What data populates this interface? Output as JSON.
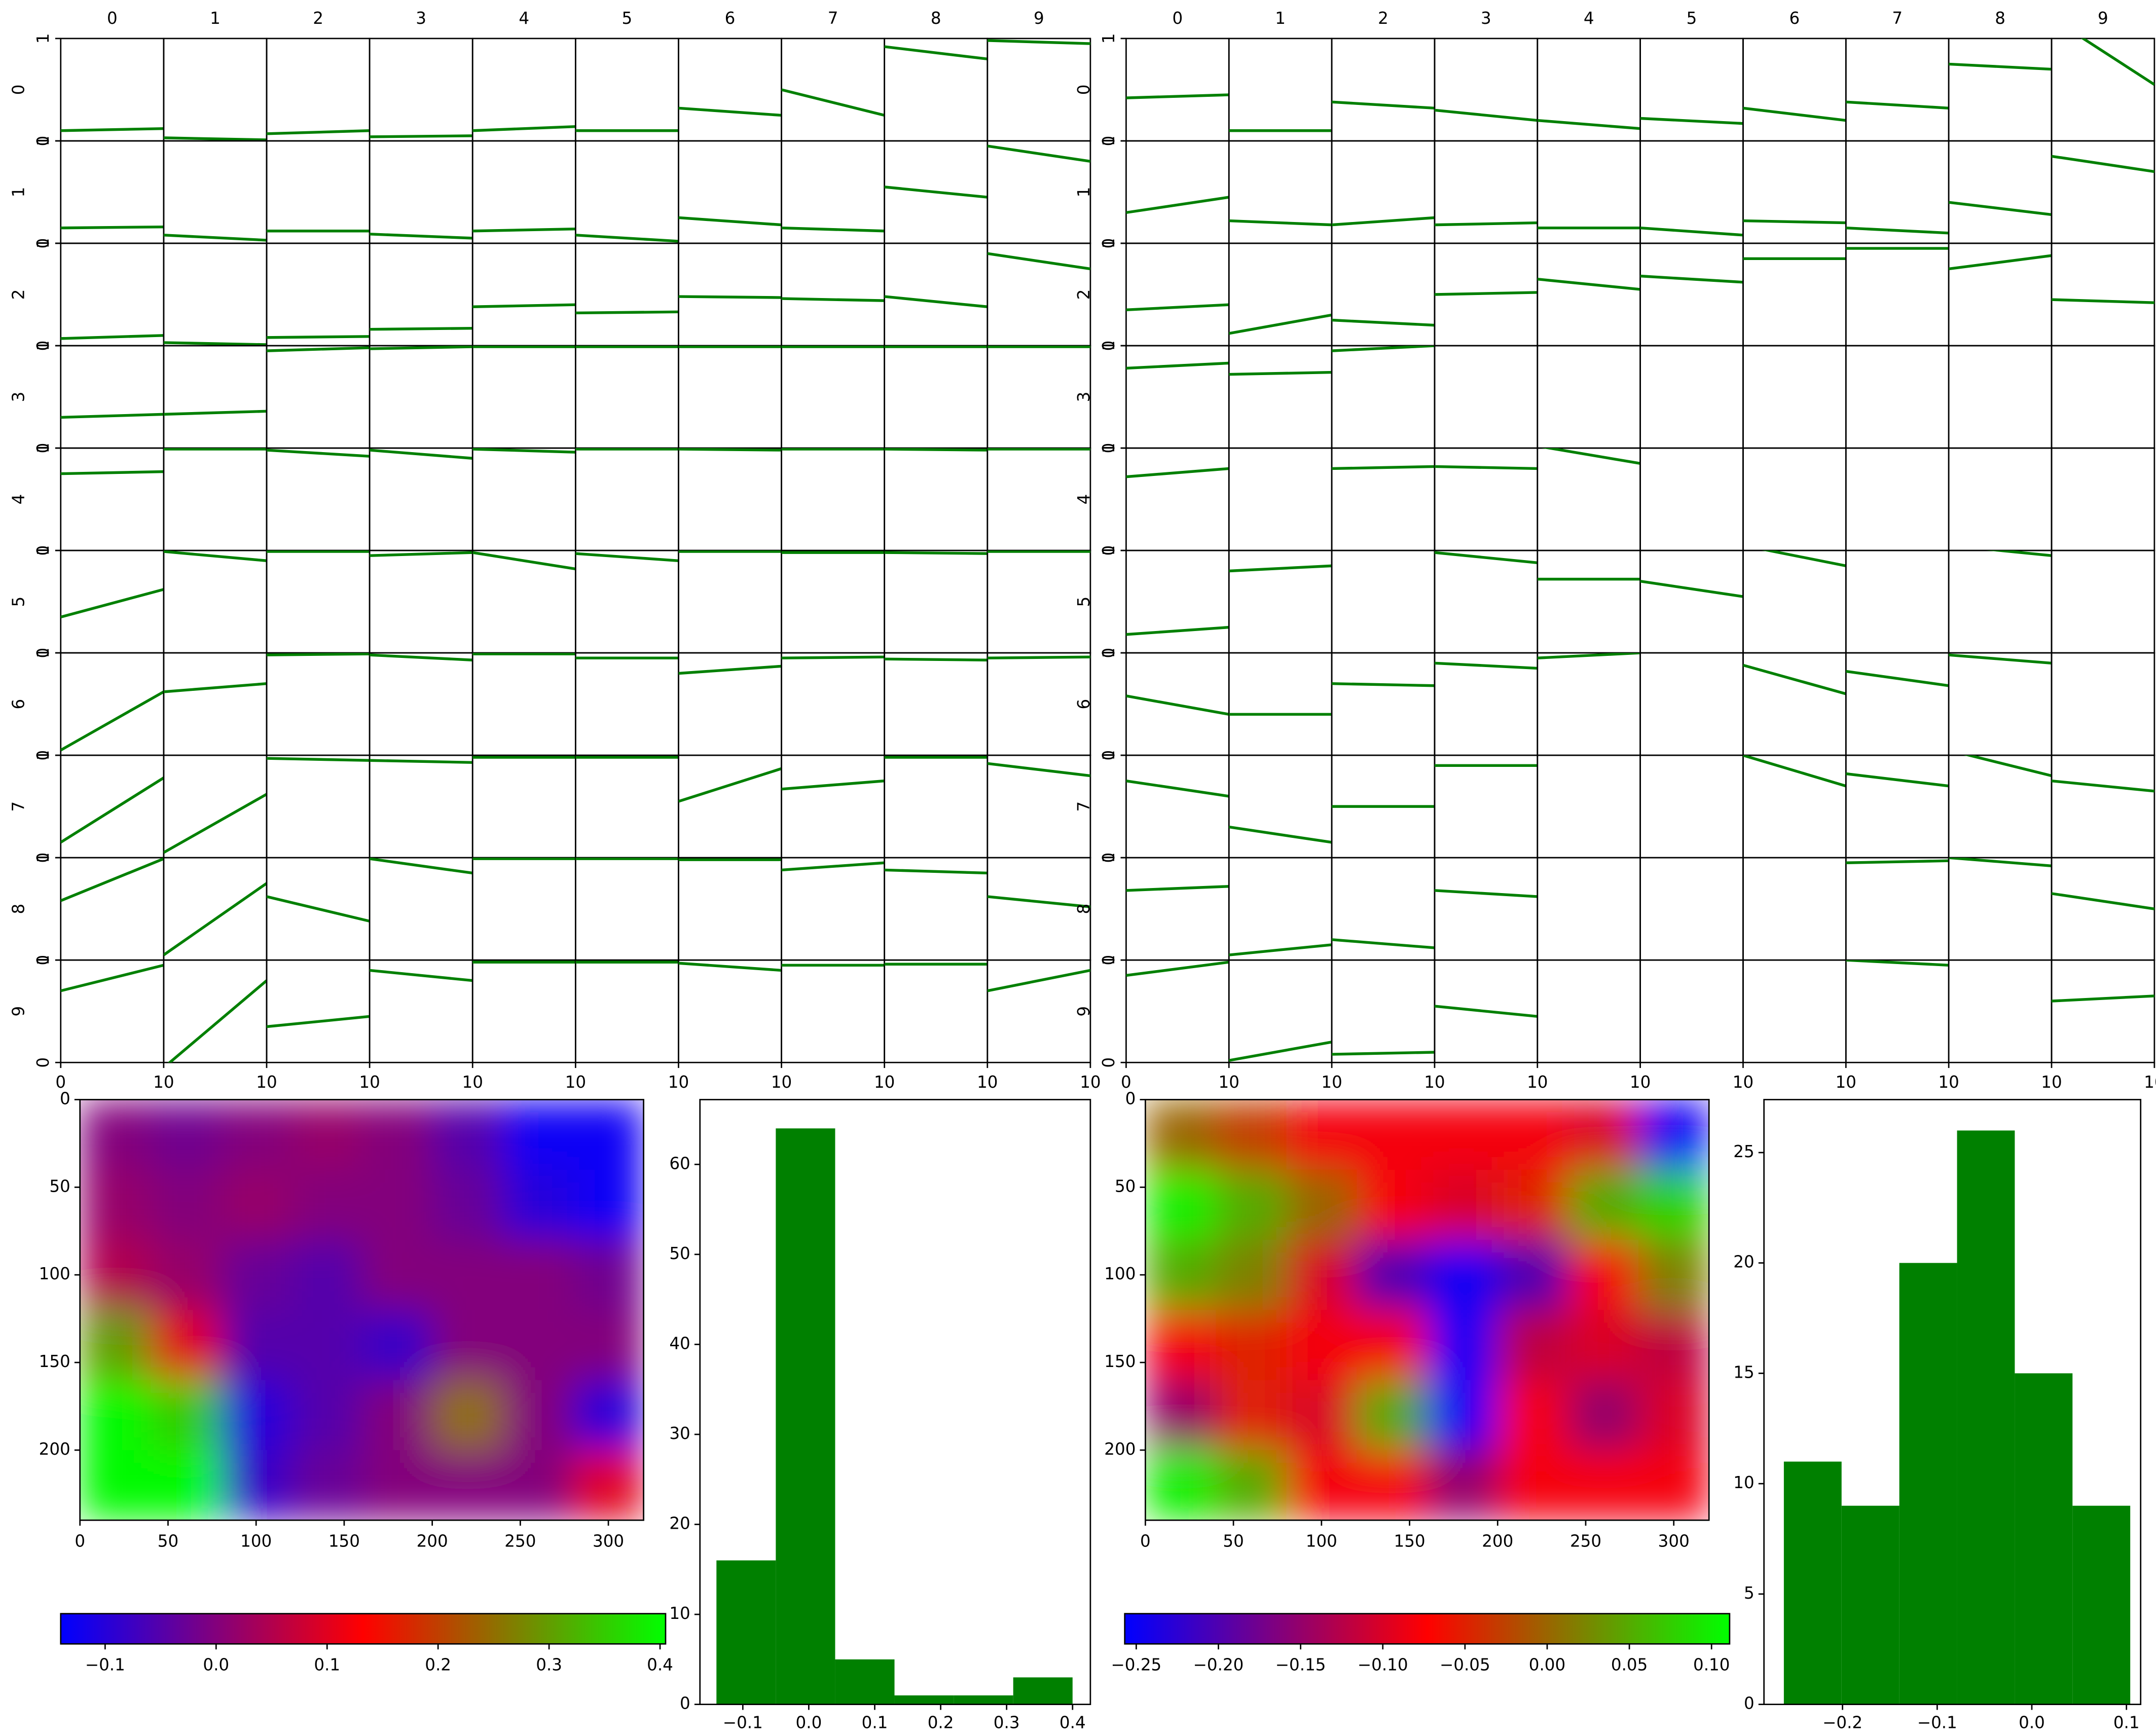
{
  "chart_data": [
    {
      "type": "grid",
      "columns": [
        "0",
        "1",
        "2",
        "3",
        "4",
        "5",
        "6",
        "7",
        "8",
        "9"
      ],
      "rows": [
        "0",
        "1",
        "2",
        "3",
        "4",
        "5",
        "6",
        "7",
        "8",
        "9"
      ],
      "xlim": [
        0,
        10
      ],
      "ylim": [
        0,
        1
      ],
      "xticks": [
        0,
        10
      ],
      "yticks": [
        0,
        1
      ],
      "color": "#008000",
      "lines": [
        [
          [
            0.1,
            0.12
          ],
          [
            0.03,
            0.01
          ],
          [
            0.07,
            0.1
          ],
          [
            0.04,
            0.05
          ],
          [
            0.1,
            0.14
          ],
          [
            0.1,
            0.1
          ],
          [
            0.32,
            0.25
          ],
          [
            0.5,
            0.25
          ],
          [
            0.92,
            0.8
          ],
          [
            0.98,
            0.95
          ]
        ],
        [
          [
            0.15,
            0.16
          ],
          [
            0.08,
            0.03
          ],
          [
            0.12,
            0.12
          ],
          [
            0.09,
            0.05
          ],
          [
            0.12,
            0.14
          ],
          [
            0.08,
            0.02
          ],
          [
            0.25,
            0.18
          ],
          [
            0.15,
            0.12
          ],
          [
            0.55,
            0.45
          ],
          [
            0.95,
            0.8
          ]
        ],
        [
          [
            0.07,
            0.1
          ],
          [
            0.03,
            0.01
          ],
          [
            0.08,
            0.09
          ],
          [
            0.16,
            0.17
          ],
          [
            0.38,
            0.4
          ],
          [
            0.32,
            0.33
          ],
          [
            0.48,
            0.47
          ],
          [
            0.46,
            0.44
          ],
          [
            0.48,
            0.38
          ],
          [
            0.9,
            0.75
          ]
        ],
        [
          [
            0.3,
            0.33
          ],
          [
            0.33,
            0.36
          ],
          [
            0.95,
            0.98
          ],
          [
            0.97,
            0.99
          ],
          [
            0.99,
            0.99
          ],
          [
            0.99,
            0.99
          ],
          [
            0.99,
            0.99
          ],
          [
            0.99,
            0.99
          ],
          [
            0.99,
            0.99
          ],
          [
            0.99,
            0.99
          ]
        ],
        [
          [
            0.75,
            0.77
          ],
          [
            0.99,
            0.99
          ],
          [
            0.98,
            0.92
          ],
          [
            0.98,
            0.9
          ],
          [
            0.99,
            0.96
          ],
          [
            0.99,
            0.99
          ],
          [
            0.99,
            0.98
          ],
          [
            0.99,
            0.99
          ],
          [
            0.99,
            0.98
          ],
          [
            0.99,
            0.99
          ]
        ],
        [
          [
            0.35,
            0.62
          ],
          [
            0.99,
            0.9
          ],
          [
            0.99,
            0.99
          ],
          [
            0.95,
            0.98
          ],
          [
            0.98,
            0.82
          ],
          [
            0.97,
            0.9
          ],
          [
            0.99,
            0.99
          ],
          [
            0.98,
            0.98
          ],
          [
            0.98,
            0.97
          ],
          [
            0.99,
            0.99
          ]
        ],
        [
          [
            0.05,
            0.62
          ],
          [
            0.62,
            0.7
          ],
          [
            0.98,
            0.99
          ],
          [
            0.98,
            0.93
          ],
          [
            0.99,
            0.99
          ],
          [
            0.95,
            0.95
          ],
          [
            0.8,
            0.87
          ],
          [
            0.95,
            0.96
          ],
          [
            0.94,
            0.93
          ],
          [
            0.95,
            0.96
          ]
        ],
        [
          [
            0.15,
            0.78
          ],
          [
            0.05,
            0.62
          ],
          [
            0.97,
            0.95
          ],
          [
            0.95,
            0.93
          ],
          [
            0.98,
            0.98
          ],
          [
            0.98,
            0.98
          ],
          [
            0.55,
            0.87
          ],
          [
            0.67,
            0.75
          ],
          [
            0.98,
            0.98
          ],
          [
            0.92,
            0.8
          ]
        ],
        [
          [
            0.58,
            0.99
          ],
          [
            0.05,
            0.75
          ],
          [
            0.62,
            0.38
          ],
          [
            0.99,
            0.85
          ],
          [
            0.99,
            0.99
          ],
          [
            0.99,
            0.99
          ],
          [
            0.98,
            0.98
          ],
          [
            0.88,
            0.95
          ],
          [
            0.88,
            0.85
          ],
          [
            0.62,
            0.52
          ]
        ],
        [
          [
            0.7,
            0.95
          ],
          [
            -0.05,
            0.8
          ],
          [
            0.35,
            0.45
          ],
          [
            0.9,
            0.8
          ],
          [
            0.98,
            0.98
          ],
          [
            0.98,
            0.98
          ],
          [
            0.97,
            0.9
          ],
          [
            0.95,
            0.95
          ],
          [
            0.96,
            0.96
          ],
          [
            0.7,
            0.9
          ]
        ]
      ]
    },
    {
      "type": "grid",
      "columns": [
        "0",
        "1",
        "2",
        "3",
        "4",
        "5",
        "6",
        "7",
        "8",
        "9"
      ],
      "rows": [
        "0",
        "1",
        "2",
        "3",
        "4",
        "5",
        "6",
        "7",
        "8",
        "9"
      ],
      "xlim": [
        0,
        10
      ],
      "ylim": [
        0,
        1
      ],
      "xticks": [
        0,
        10
      ],
      "yticks": [
        0,
        1
      ],
      "color": "#008000",
      "lines": [
        [
          [
            0.42,
            0.45
          ],
          [
            0.1,
            0.1
          ],
          [
            0.38,
            0.32
          ],
          [
            0.3,
            0.2
          ],
          [
            0.2,
            0.12
          ],
          [
            0.22,
            0.17
          ],
          [
            0.32,
            0.2
          ],
          [
            0.38,
            0.32
          ],
          [
            0.75,
            0.7
          ],
          [
            1.2,
            0.55
          ]
        ],
        [
          [
            0.3,
            0.45
          ],
          [
            0.22,
            0.18
          ],
          [
            0.18,
            0.25
          ],
          [
            0.18,
            0.2
          ],
          [
            0.15,
            0.15
          ],
          [
            0.15,
            0.08
          ],
          [
            0.22,
            0.2
          ],
          [
            0.15,
            0.1
          ],
          [
            0.4,
            0.28
          ],
          [
            0.85,
            0.7
          ]
        ],
        [
          [
            0.35,
            0.4
          ],
          [
            0.12,
            0.3
          ],
          [
            0.25,
            0.2
          ],
          [
            0.5,
            0.52
          ],
          [
            0.65,
            0.55
          ],
          [
            0.68,
            0.62
          ],
          [
            0.85,
            0.85
          ],
          [
            0.95,
            0.95
          ],
          [
            0.75,
            0.88
          ],
          [
            0.45,
            0.42
          ]
        ],
        [
          [
            0.78,
            0.83
          ],
          [
            0.72,
            0.74
          ],
          [
            0.95,
            1.0
          ],
          null,
          null,
          null,
          null,
          null,
          null,
          null
        ],
        [
          [
            0.72,
            0.8
          ],
          null,
          [
            0.8,
            0.82
          ],
          [
            0.82,
            0.8
          ],
          [
            1.02,
            0.85
          ],
          null,
          null,
          null,
          null,
          null
        ],
        [
          [
            0.18,
            0.25
          ],
          [
            0.8,
            0.85
          ],
          null,
          [
            0.98,
            0.88
          ],
          [
            0.72,
            0.72
          ],
          [
            0.7,
            0.55
          ],
          [
            1.05,
            0.85
          ],
          null,
          [
            1.05,
            0.95
          ],
          null
        ],
        [
          [
            0.58,
            0.4
          ],
          [
            0.4,
            0.4
          ],
          [
            0.7,
            0.68
          ],
          [
            0.9,
            0.85
          ],
          [
            0.95,
            1.0
          ],
          null,
          [
            0.88,
            0.6
          ],
          [
            0.82,
            0.68
          ],
          [
            0.98,
            0.9
          ],
          null
        ],
        [
          [
            0.75,
            0.6
          ],
          [
            0.3,
            0.15
          ],
          [
            0.5,
            0.5
          ],
          [
            0.9,
            0.9
          ],
          null,
          null,
          [
            1.0,
            0.7
          ],
          [
            0.82,
            0.7
          ],
          [
            1.05,
            0.8
          ],
          [
            0.75,
            0.65
          ]
        ],
        [
          [
            0.68,
            0.72
          ],
          [
            0.05,
            0.15
          ],
          [
            0.2,
            0.12
          ],
          [
            0.68,
            0.62
          ],
          null,
          null,
          null,
          [
            0.95,
            0.97
          ],
          [
            1.0,
            0.92
          ],
          [
            0.65,
            0.5
          ]
        ],
        [
          [
            0.85,
            0.98
          ],
          [
            0.02,
            0.2
          ],
          [
            0.08,
            0.1
          ],
          [
            0.55,
            0.45
          ],
          null,
          null,
          null,
          [
            1.0,
            0.95
          ],
          null,
          [
            0.6,
            0.65
          ]
        ]
      ]
    },
    {
      "type": "heatmap",
      "xlim": [
        0,
        320
      ],
      "ylim": [
        240,
        0
      ],
      "xticks": [
        0,
        50,
        100,
        150,
        200,
        250,
        300
      ],
      "yticks": [
        0,
        50,
        100,
        150,
        200
      ],
      "cmap": [
        "#0000ff",
        "#ff0000",
        "#00ff00"
      ],
      "clim": [
        -0.14,
        0.405
      ],
      "cticks": [
        {
          "value": -0.1,
          "label": "−0.1"
        },
        {
          "value": 0,
          "label": "0.0"
        },
        0.1,
        0.2,
        0.3,
        0.4
      ],
      "values": [
        [
          0.0,
          -0.02,
          0.0,
          0.02,
          0.0,
          -0.05,
          -0.13,
          -0.13
        ],
        [
          0.02,
          0.0,
          0.02,
          0.0,
          0.0,
          -0.03,
          -0.1,
          -0.13
        ],
        [
          0.05,
          0.02,
          -0.03,
          -0.05,
          0.0,
          0.0,
          0.0,
          -0.02
        ],
        [
          0.3,
          0.1,
          -0.05,
          -0.05,
          -0.08,
          0.0,
          0.0,
          0.0
        ],
        [
          0.4,
          0.35,
          -0.1,
          -0.05,
          0.0,
          0.25,
          0.0,
          -0.1
        ],
        [
          0.4,
          0.4,
          -0.08,
          -0.03,
          0.0,
          0.0,
          0.0,
          0.1
        ]
      ]
    },
    {
      "type": "histogram",
      "bins": [
        -0.14,
        -0.05,
        0.04,
        0.13,
        0.22,
        0.31,
        0.4
      ],
      "counts": [
        16,
        64,
        5,
        1,
        1,
        3
      ],
      "color": "#008000",
      "xlim": [
        -0.165,
        0.427
      ],
      "ylim": [
        0,
        67.2
      ],
      "yticks": [
        0,
        10,
        20,
        30,
        40,
        50,
        60
      ],
      "xticks": [
        {
          "value": -0.1,
          "label": "−0.1"
        },
        {
          "value": 0,
          "label": "0.0"
        },
        0.1,
        0.2,
        0.3,
        0.4
      ]
    },
    {
      "type": "heatmap",
      "xlim": [
        0,
        320
      ],
      "ylim": [
        240,
        0
      ],
      "xticks": [
        0,
        50,
        100,
        150,
        200,
        250,
        300
      ],
      "yticks": [
        0,
        50,
        100,
        150,
        200
      ],
      "cmap": [
        "#0000ff",
        "#ff0000",
        "#00ff00"
      ],
      "clim": [
        -0.257,
        0.111
      ],
      "cticks": [
        {
          "value": -0.25,
          "label": "−0.25"
        },
        {
          "value": -0.2,
          "label": "−0.20"
        },
        {
          "value": -0.15,
          "label": "−0.15"
        },
        {
          "value": -0.1,
          "label": "−0.10"
        },
        {
          "value": -0.05,
          "label": "−0.05"
        },
        {
          "value": 0,
          "label": "0.00"
        },
        {
          "value": 0.05,
          "label": "0.05"
        },
        {
          "value": 0.1,
          "label": "0.10"
        }
      ],
      "values": [
        [
          0.0,
          -0.03,
          -0.08,
          -0.08,
          -0.08,
          -0.08,
          -0.1,
          -0.25
        ],
        [
          0.1,
          0.05,
          0.0,
          -0.08,
          -0.1,
          -0.05,
          0.05,
          0.08
        ],
        [
          0.05,
          0.02,
          -0.1,
          -0.2,
          -0.25,
          -0.2,
          -0.08,
          0.02
        ],
        [
          -0.08,
          -0.05,
          -0.08,
          -0.08,
          -0.25,
          -0.12,
          -0.1,
          -0.12
        ],
        [
          -0.15,
          -0.05,
          -0.1,
          0.05,
          -0.25,
          -0.08,
          -0.15,
          -0.1
        ],
        [
          0.1,
          0.05,
          -0.08,
          -0.08,
          -0.15,
          -0.08,
          -0.08,
          -0.08
        ]
      ]
    },
    {
      "type": "histogram",
      "bins": [
        -0.262,
        -0.201,
        -0.14,
        -0.079,
        -0.018,
        0.043,
        0.104
      ],
      "counts": [
        11,
        9,
        20,
        26,
        15,
        9
      ],
      "color": "#008000",
      "xlim": [
        -0.283,
        0.115
      ],
      "ylim": [
        0,
        27.4
      ],
      "yticks": [
        0,
        5,
        10,
        15,
        20,
        25
      ],
      "xticks": [
        {
          "value": -0.2,
          "label": "−0.2"
        },
        {
          "value": -0.1,
          "label": "−0.1"
        },
        {
          "value": 0,
          "label": "0.0"
        },
        0.1
      ]
    }
  ]
}
